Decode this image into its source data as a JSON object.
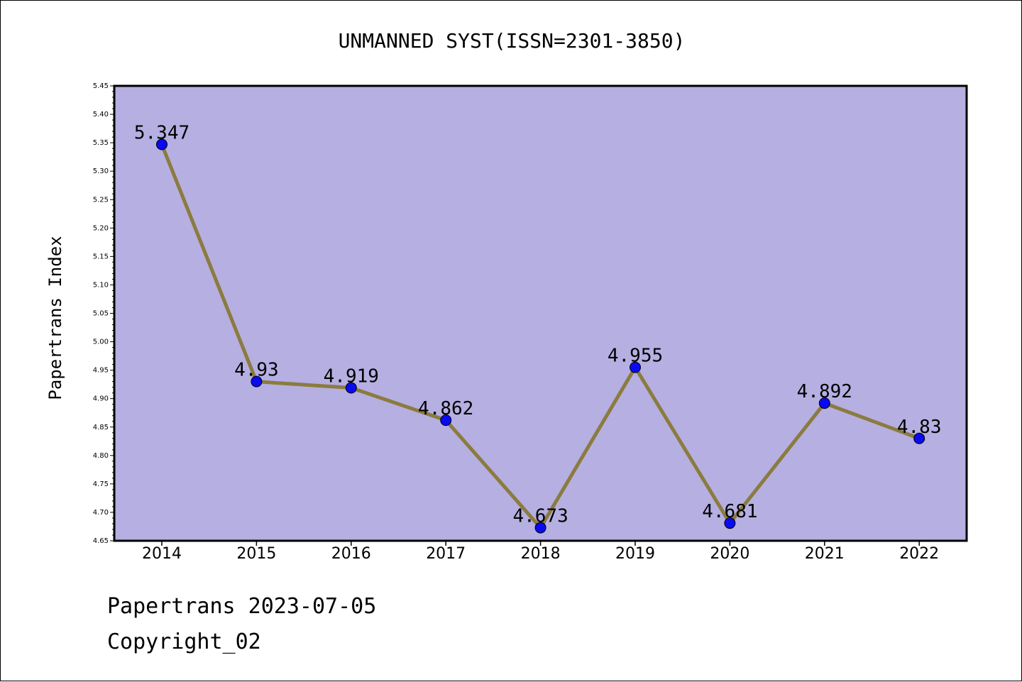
{
  "chart_data": {
    "type": "line",
    "title": "UNMANNED SYST(ISSN=2301-3850)",
    "xlabel": "",
    "ylabel": "Papertrans Index",
    "categories": [
      "2014",
      "2015",
      "2016",
      "2017",
      "2018",
      "2019",
      "2020",
      "2021",
      "2022"
    ],
    "series": [
      {
        "values": [
          5.347,
          4.93,
          4.919,
          4.862,
          4.673,
          4.955,
          4.681,
          4.892,
          4.83
        ],
        "labels": [
          "5.347",
          "4.93",
          "4.919",
          "4.862",
          "4.673",
          "4.955",
          "4.681",
          "4.892",
          "4.83"
        ]
      }
    ],
    "ylim": [
      4.65,
      5.45
    ],
    "ytick_step": 0.05,
    "grid": false,
    "colors": {
      "plot_background": "#b5afe2",
      "line": "#8b7b3e",
      "marker": "#0a0af0"
    }
  },
  "footer": {
    "line1": "Papertrans 2023-07-05",
    "line2": "Copyright_02"
  }
}
